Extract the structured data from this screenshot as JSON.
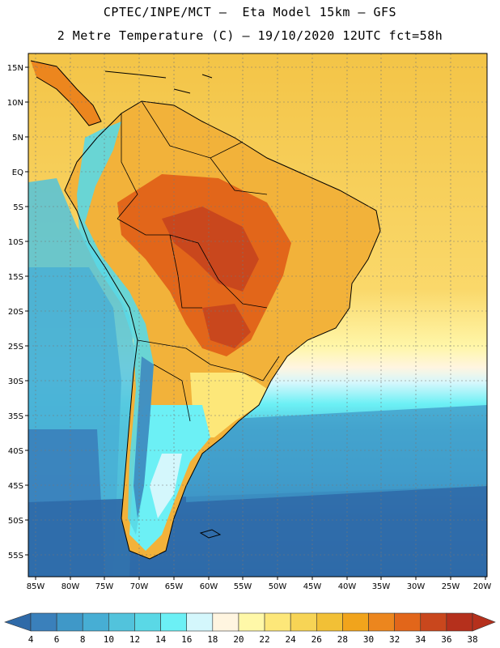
{
  "header": {
    "line1": "CPTEC/INPE/MCT –  Eta Model 15km – GFS",
    "line2": "2 Metre Temperature (C) – 19/10/2020 12UTC fct=58h"
  },
  "map": {
    "lat_labels": [
      "15N",
      "10N",
      "5N",
      "EQ",
      "5S",
      "10S",
      "15S",
      "20S",
      "25S",
      "30S",
      "35S",
      "40S",
      "45S",
      "50S",
      "55S"
    ],
    "lon_labels": [
      "85W",
      "80W",
      "75W",
      "70W",
      "65W",
      "60W",
      "55W",
      "50W",
      "45W",
      "40W",
      "35W",
      "30W",
      "25W",
      "20W"
    ]
  },
  "colorbar": {
    "ticks": [
      "4",
      "6",
      "8",
      "10",
      "12",
      "14",
      "16",
      "18",
      "20",
      "22",
      "24",
      "26",
      "28",
      "30",
      "32",
      "34",
      "36",
      "38"
    ],
    "colors": [
      "#2f6aa8",
      "#3a80bb",
      "#3f98c8",
      "#47aed4",
      "#52c3dc",
      "#5ad8e6",
      "#6cf0f5",
      "#d4f7fc",
      "#fff5e0",
      "#fff8a8",
      "#fde779",
      "#f7d455",
      "#f2c036",
      "#f1a41c",
      "#ec861e",
      "#e2661a",
      "#c9471d",
      "#b5301c"
    ]
  }
}
